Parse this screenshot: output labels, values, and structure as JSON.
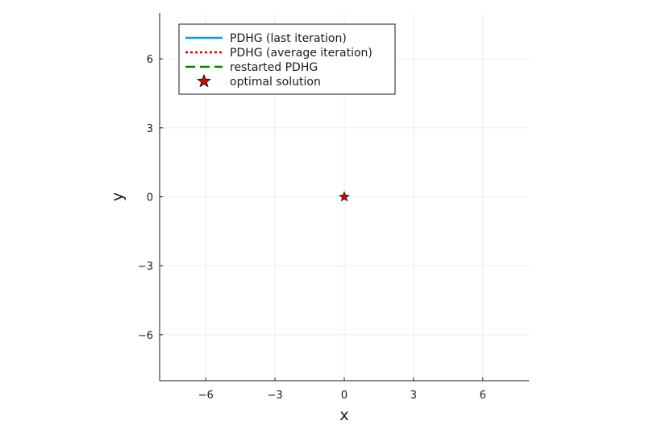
{
  "chart_data": {
    "type": "line",
    "title": "",
    "xlabel": "x",
    "ylabel": "y",
    "xlim": [
      -8,
      8
    ],
    "ylim": [
      -8,
      8
    ],
    "xticks": [
      -6,
      -3,
      0,
      3,
      6
    ],
    "yticks": [
      -6,
      -3,
      0,
      3,
      6
    ],
    "xtick_labels": [
      "−6",
      "−3",
      "0",
      "3",
      "6"
    ],
    "ytick_labels": [
      "−6",
      "−3",
      "0",
      "3",
      "6"
    ],
    "grid": true,
    "legend_position": "top-left",
    "series": [
      {
        "name": "PDHG (last iteration)",
        "style": "solid",
        "color": "#009AF9",
        "points": []
      },
      {
        "name": "PDHG (average iteration)",
        "style": "dotted",
        "color": "#E30000",
        "points": []
      },
      {
        "name": "restarted PDHG",
        "style": "dashed",
        "color": "#008000",
        "points": []
      },
      {
        "name": "optimal solution",
        "style": "star-marker",
        "color": "#E30000",
        "points": [
          [
            0,
            0
          ]
        ]
      }
    ]
  }
}
